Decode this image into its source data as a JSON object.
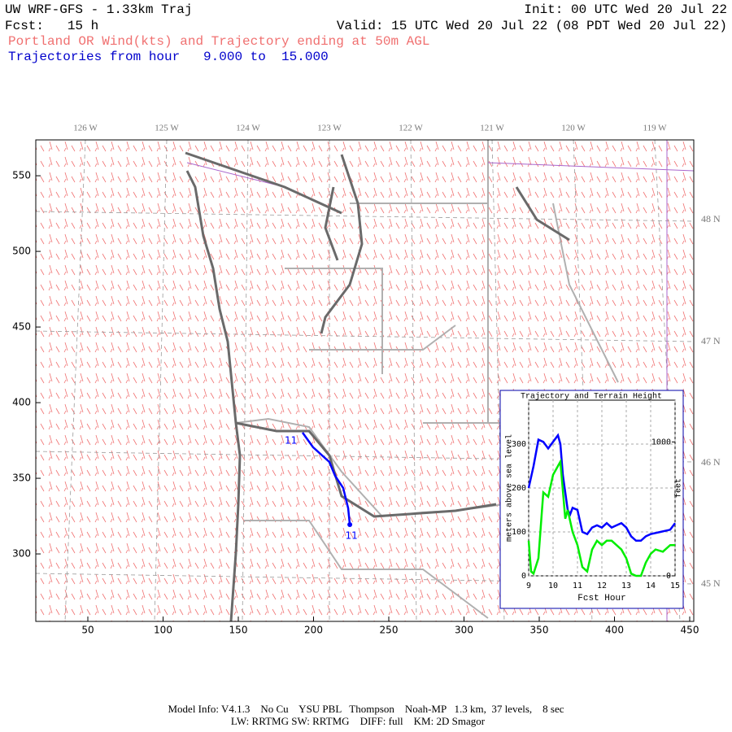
{
  "header": {
    "title": "UW WRF-GFS - 1.33km Traj",
    "init": "Init: 00 UTC Wed 20 Jul 22",
    "fcst": "Fcst:   15 h",
    "valid": "Valid: 15 UTC Wed 20 Jul 22 (08 PDT Wed 20 Jul 22)",
    "subtitle": "Portland OR Wind(kts) and Trajectory ending at 50m AGL",
    "hours": "Trajectories from hour   9.000 to  15.000"
  },
  "chart_data": [
    {
      "type": "map",
      "xlim": [
        15.4,
        452.7
      ],
      "ylim": [
        255.4,
        573.7
      ],
      "xticks": [
        50,
        100,
        150,
        200,
        250,
        300,
        350,
        400,
        450
      ],
      "yticks": [
        300,
        350,
        400,
        450,
        500,
        550
      ],
      "lon_labels": [
        "126 W",
        "125 W",
        "124 W",
        "123 W",
        "122 W",
        "121 W",
        "120 W",
        "119 W"
      ],
      "lat_labels": [
        "48 N",
        "47 N",
        "46 N",
        "45 N"
      ],
      "series": [
        {
          "name": "trajectory",
          "color": "#0000ff",
          "x": [
            192.7,
            199.7,
            210.5,
            214.3,
            219.7,
            223.0,
            224.1
          ],
          "values": [
            380.2,
            370.5,
            360.8,
            351.7,
            343.6,
            330.2,
            319.4
          ]
        }
      ],
      "annotations": [
        "11",
        "11"
      ]
    },
    {
      "type": "line",
      "title": "Trajectory and Terrain Height",
      "xlabel": "Fcst Hour",
      "ylabel": "meters above sea level",
      "y2label": "feet",
      "xlim": [
        9,
        15
      ],
      "ylim": [
        0,
        400
      ],
      "xticks": [
        9,
        10,
        11,
        12,
        13,
        14,
        15
      ],
      "yticks": [
        0,
        100,
        200,
        300
      ],
      "y2lim": [
        0,
        1312
      ],
      "y2ticks": [
        0,
        1000
      ],
      "grid": true,
      "series": [
        {
          "name": "trajectory height",
          "color": "#0000ff",
          "x": [
            9,
            9.2,
            9.4,
            9.6,
            9.8,
            10,
            10.2,
            10.3,
            10.4,
            10.6,
            10.7,
            10.8,
            11,
            11.2,
            11.4,
            11.6,
            11.8,
            12,
            12.2,
            12.4,
            12.6,
            12.8,
            13,
            13.2,
            13.4,
            13.6,
            13.8,
            14,
            14.4,
            14.8,
            15
          ],
          "values": [
            200,
            250,
            310,
            305,
            290,
            305,
            320,
            300,
            230,
            150,
            140,
            155,
            150,
            100,
            95,
            110,
            115,
            110,
            120,
            110,
            115,
            120,
            110,
            90,
            80,
            80,
            90,
            95,
            100,
            105,
            120
          ]
        },
        {
          "name": "terrain height",
          "color": "#00ee00",
          "x": [
            9,
            9.1,
            9.2,
            9.4,
            9.6,
            9.8,
            10,
            10.2,
            10.3,
            10.5,
            10.6,
            10.8,
            11,
            11.2,
            11.4,
            11.6,
            11.8,
            12,
            12.2,
            12.4,
            12.6,
            12.8,
            13,
            13.2,
            13.4,
            13.6,
            13.8,
            14,
            14.2,
            14.5,
            14.8,
            15
          ],
          "values": [
            80,
            10,
            5,
            40,
            190,
            180,
            230,
            250,
            260,
            130,
            150,
            100,
            70,
            20,
            10,
            60,
            80,
            70,
            80,
            80,
            70,
            60,
            40,
            5,
            0,
            0,
            30,
            50,
            60,
            55,
            70,
            70
          ]
        }
      ]
    }
  ],
  "footer": {
    "line1": "Model Info: V4.1.3    No Cu    YSU PBL   Thompson    Noah-MP   1.3 km,  37 levels,    8 sec",
    "line2": "LW: RRTMG SW: RRTMG    DIFF: full    KM: 2D Smagor"
  }
}
